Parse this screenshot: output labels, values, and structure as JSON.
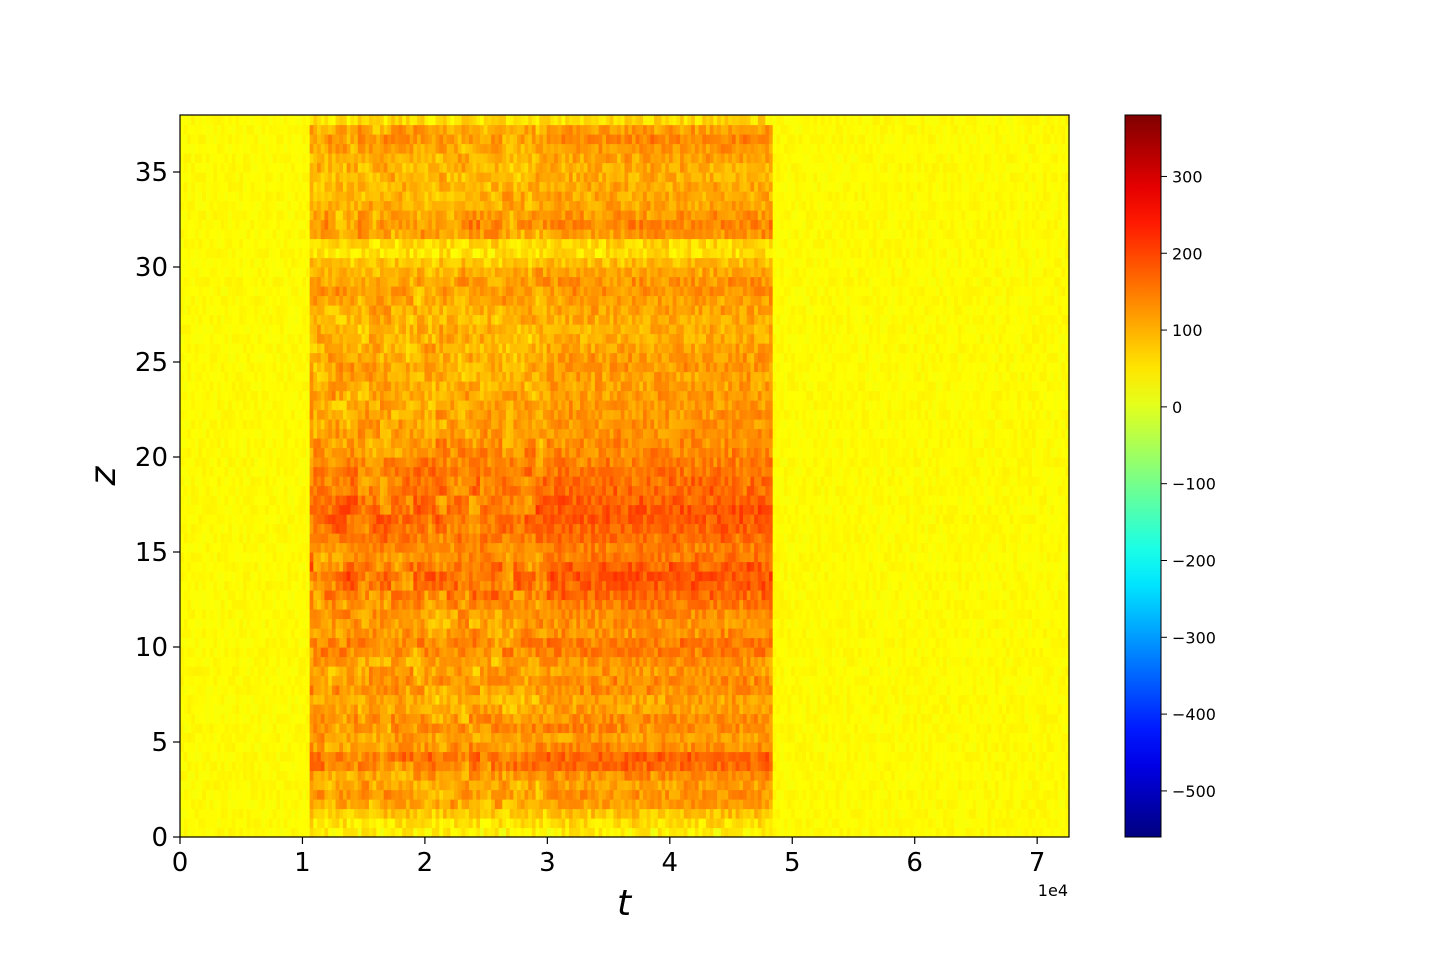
{
  "chart_data": {
    "type": "heatmap",
    "title": "",
    "xlabel": "t",
    "ylabel": "z",
    "x_offset_text": "1e4",
    "xlim": [
      0,
      72600
    ],
    "ylim": [
      0,
      38
    ],
    "xticks": [
      0,
      10000,
      20000,
      30000,
      40000,
      50000,
      60000,
      70000
    ],
    "xtick_labels": [
      "0",
      "1",
      "2",
      "3",
      "4",
      "5",
      "6",
      "7"
    ],
    "yticks": [
      0,
      5,
      10,
      15,
      20,
      25,
      30,
      35
    ],
    "ytick_labels": [
      "0",
      "5",
      "10",
      "15",
      "20",
      "25",
      "30",
      "35"
    ],
    "colormap": "jet",
    "clim": [
      -560,
      380
    ],
    "colorbar_ticks": [
      300,
      200,
      100,
      0,
      -100,
      -200,
      -300,
      -400,
      -500
    ],
    "colorbar_tick_labels": [
      "300",
      "200",
      "100",
      "0",
      "−100",
      "−200",
      "−300",
      "−400",
      "−500"
    ],
    "grid": false,
    "active_region_t": [
      10500,
      48500
    ],
    "background_value": 30,
    "active_level_by_z": [
      [
        0,
        30
      ],
      [
        1,
        70
      ],
      [
        2,
        140
      ],
      [
        3,
        120
      ],
      [
        4,
        200
      ],
      [
        5,
        120
      ],
      [
        6,
        150
      ],
      [
        7,
        110
      ],
      [
        8,
        150
      ],
      [
        9,
        120
      ],
      [
        10,
        170
      ],
      [
        11,
        130
      ],
      [
        12,
        150
      ],
      [
        13,
        190
      ],
      [
        14,
        200
      ],
      [
        15,
        150
      ],
      [
        16,
        180
      ],
      [
        17,
        200
      ],
      [
        18,
        180
      ],
      [
        19,
        170
      ],
      [
        20,
        150
      ],
      [
        21,
        140
      ],
      [
        22,
        130
      ],
      [
        23,
        130
      ],
      [
        24,
        120
      ],
      [
        25,
        130
      ],
      [
        26,
        110
      ],
      [
        27,
        110
      ],
      [
        28,
        120
      ],
      [
        29,
        140
      ],
      [
        30,
        110
      ],
      [
        31,
        40
      ],
      [
        32,
        160
      ],
      [
        33,
        120
      ],
      [
        34,
        110
      ],
      [
        35,
        110
      ],
      [
        36,
        120
      ],
      [
        37,
        160
      ],
      [
        38,
        30
      ]
    ]
  }
}
